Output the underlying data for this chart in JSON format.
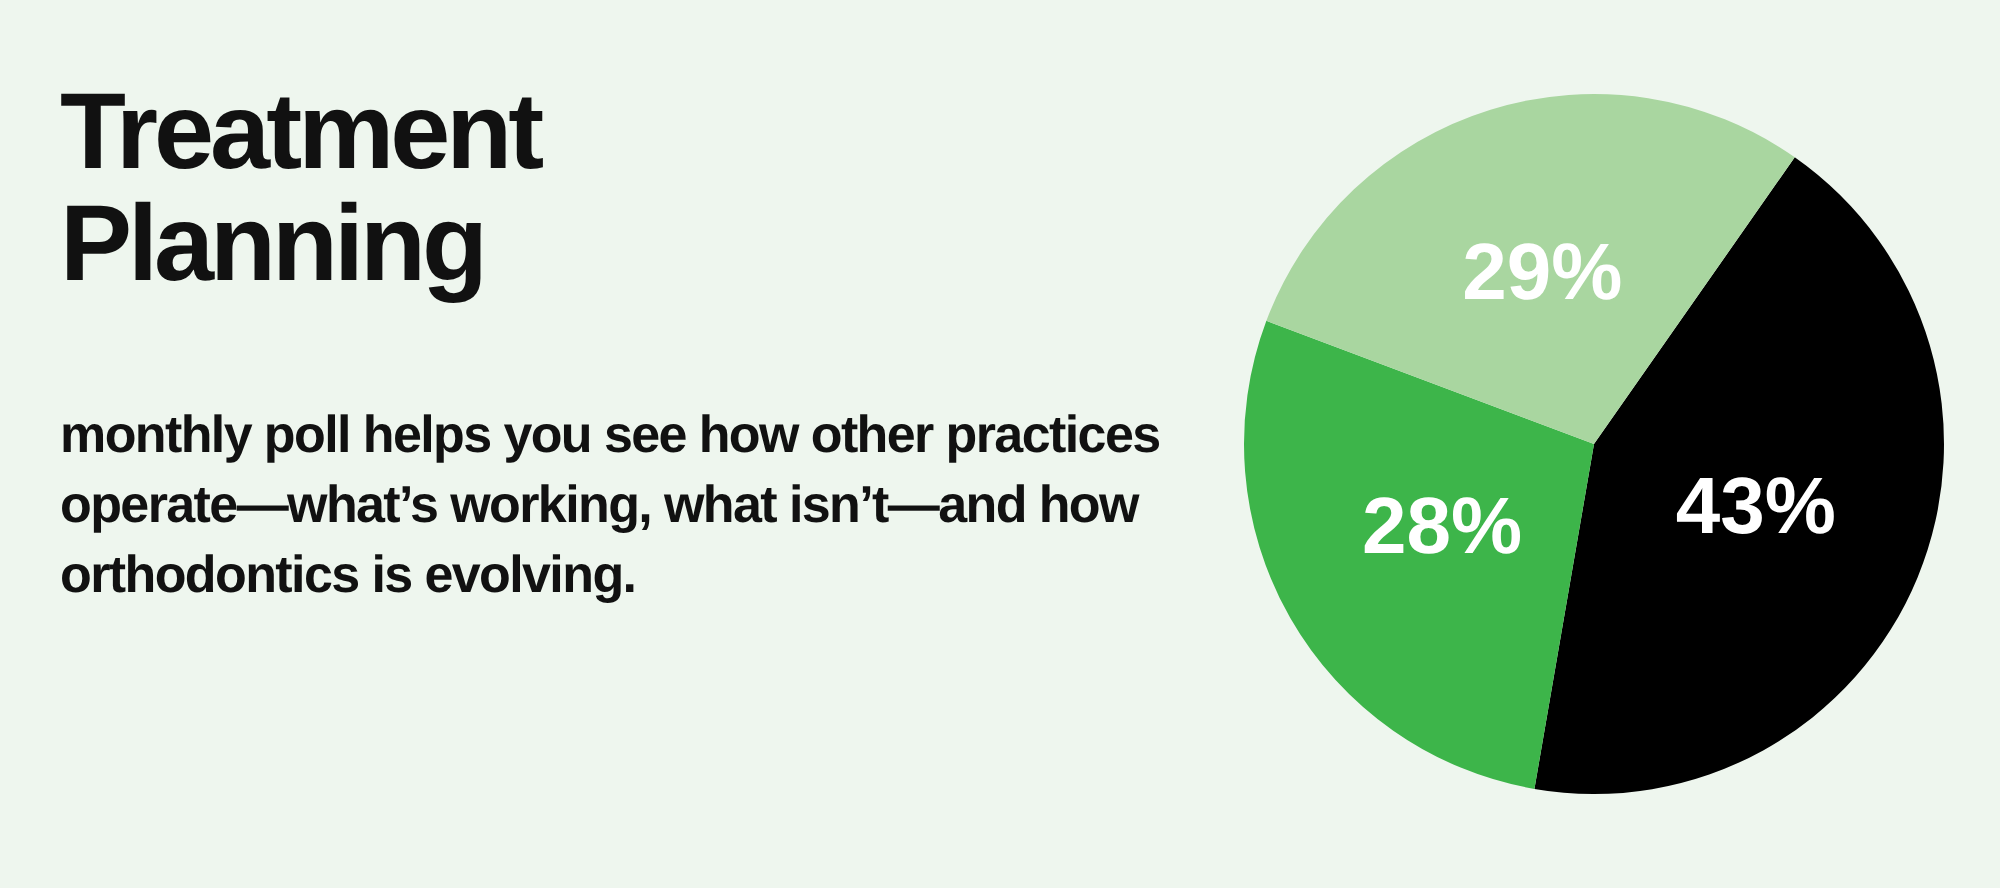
{
  "chart_data": {
    "type": "pie",
    "title": "Treatment Planning",
    "subtitle": "monthly poll helps you see how other practices operate—what’s working, what isn’t—and how orthodontics is evolving.",
    "categories": [
      null,
      null,
      null
    ],
    "values": [
      43,
      28,
      29
    ],
    "colors": [
      "#000000",
      "#3db54a",
      "#a9d6a0"
    ],
    "value_labels": [
      "43%",
      "28%",
      "29%"
    ],
    "legend": false
  }
}
